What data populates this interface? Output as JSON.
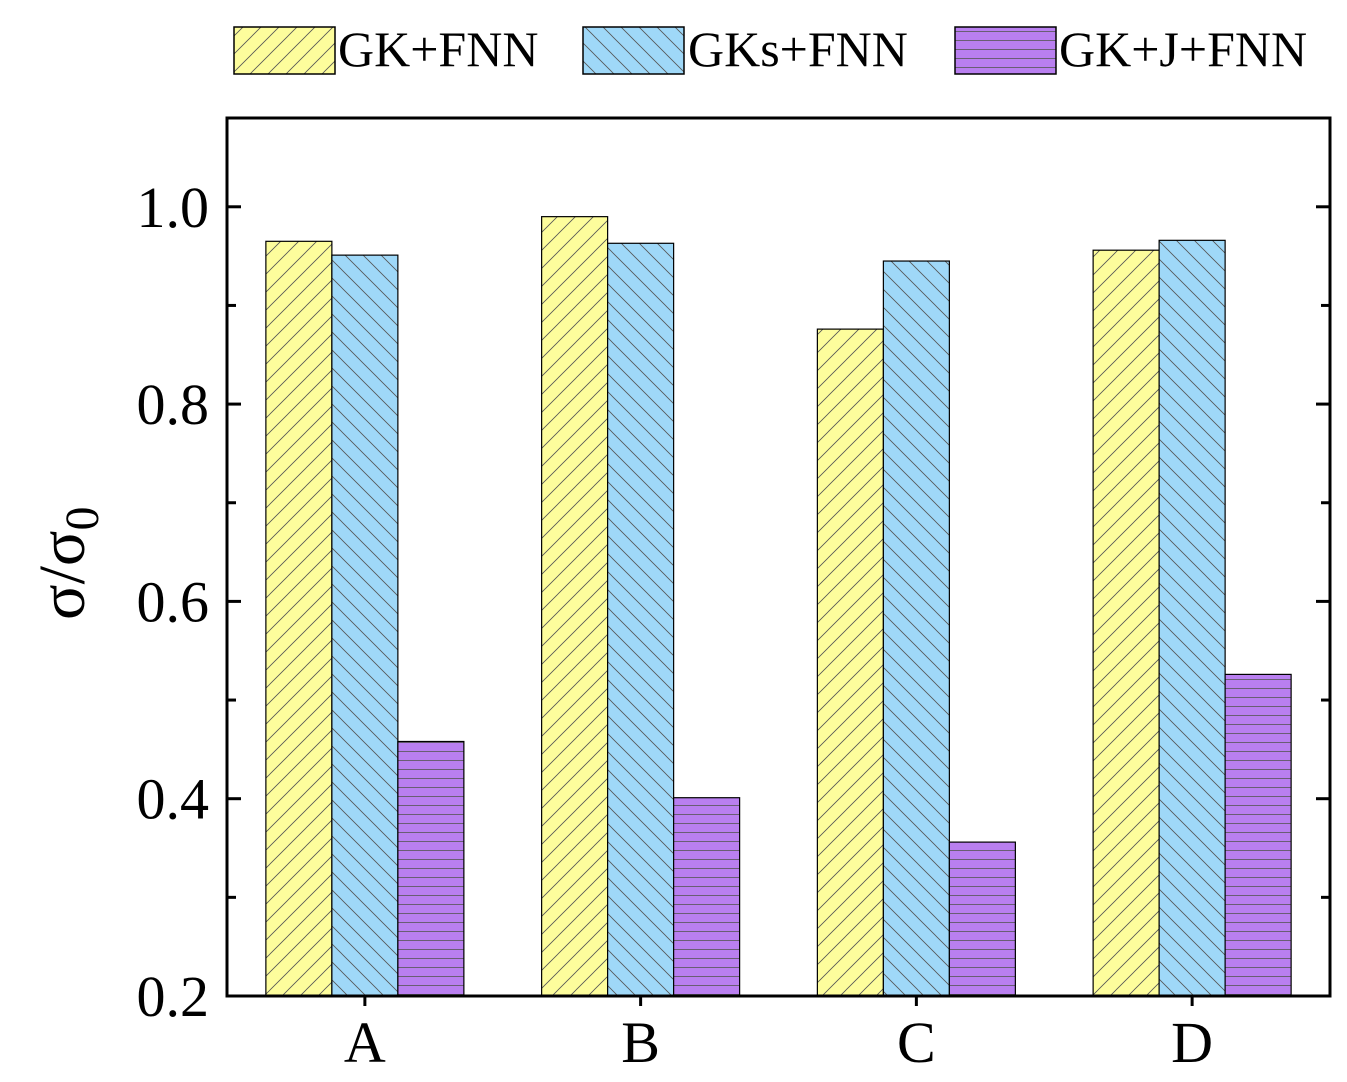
{
  "chart_data": {
    "type": "bar",
    "categories": [
      "A",
      "B",
      "C",
      "D"
    ],
    "series": [
      {
        "name": "GK+FNN",
        "values": [
          0.965,
          0.99,
          0.876,
          0.956
        ],
        "color": "#fdfd9c",
        "pattern": "forward-diagonal"
      },
      {
        "name": "GKs+FNN",
        "values": [
          0.951,
          0.963,
          0.945,
          0.966
        ],
        "color": "#9fd8f8",
        "pattern": "back-diagonal"
      },
      {
        "name": "GK+J+FNN",
        "values": [
          0.458,
          0.401,
          0.356,
          0.526
        ],
        "color": "#b97ff0",
        "pattern": "horizontal"
      }
    ],
    "ylabel": "σ/σ",
    "ylabel_sub": "0",
    "xlabel": "",
    "ylim": [
      0.2,
      1.09
    ],
    "yticks": [
      "0.2",
      "0.4",
      "0.6",
      "0.8",
      "1.0"
    ],
    "legend_position": "top",
    "grid": false
  }
}
